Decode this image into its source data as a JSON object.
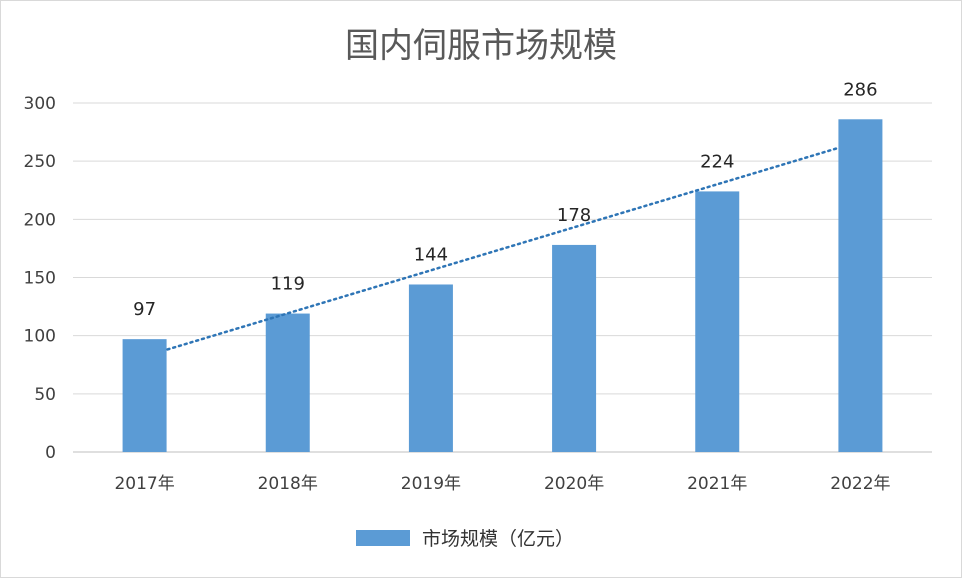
{
  "chart_data": {
    "type": "bar",
    "title": "国内伺服市场规模",
    "categories": [
      "2017年",
      "2018年",
      "2019年",
      "2020年",
      "2021年",
      "2022年"
    ],
    "series": [
      {
        "name": "市场规模（亿元）",
        "values": [
          97,
          119,
          144,
          178,
          224,
          286
        ],
        "color": "#5b9bd5"
      }
    ],
    "trendline": {
      "type": "linear",
      "style": "dotted",
      "color": "#2e75b6"
    },
    "ylim": [
      0,
      300
    ],
    "yticks": [
      0,
      50,
      100,
      150,
      200,
      250,
      300
    ],
    "grid": true,
    "data_labels": true,
    "legend": "bottom"
  }
}
